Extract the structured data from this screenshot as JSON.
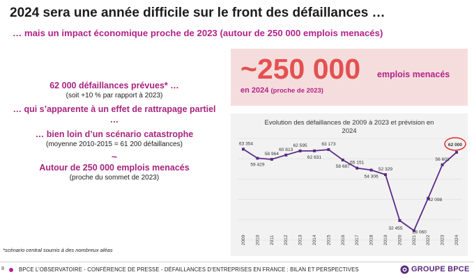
{
  "slide": {
    "title": "2024 sera une année difficile sur le front des défaillances …",
    "subtitle": "… mais un impact économique proche de 2023 (autour de 250 000 emplois menacés)"
  },
  "points": {
    "p1": "62 000 défaillances prévues* …",
    "p1_sub": "(soit +10 % par rapport à 2023)",
    "p2": "… qui s’apparente à un effet de rattrapage partiel …",
    "p3": "… bien loin d’un scénario catastrophe",
    "p3_sub": "(moyenne 2010-2015 = 61 200 défaillances)",
    "tilde": "~",
    "p4": "Autour de 250 000 emplois menacés",
    "p4_sub": "(proche du sommet de 2023)"
  },
  "footnote": "*scénario central soumis à des nombreux aléas",
  "kpi": {
    "value": "~250 000",
    "unit": "emplois menacés",
    "year": "en 2024",
    "year_note": "(proche de 2023)"
  },
  "footer": {
    "page": "8",
    "text": "BPCE L’OBSERVATOIRE - CONFÉRENCE DE PRESSE -  DÉFAILLANCES D’ENTREPRISES EN FRANCE : BILAN ET PERSPECTIVES",
    "brand": "GROUPE BPCE"
  },
  "colors": {
    "accent": "#b3228a",
    "kpi_value": "#e45151",
    "kpi_bg": "#f6dddd",
    "line": "#5b2a86",
    "highlight": "#e02020"
  },
  "chart_data": {
    "type": "line",
    "title": "Evolution des défaillances de 2009 à 2023 et prévision en 2024",
    "x": [
      "2009",
      "2010",
      "2011",
      "2012",
      "2013",
      "2014",
      "2015",
      "2016",
      "2017",
      "2018",
      "2019",
      "2020",
      "2021",
      "2022",
      "2023",
      "2024"
    ],
    "values": [
      63354,
      59429,
      58964,
      60813,
      62595,
      62631,
      63173,
      58687,
      55151,
      54306,
      52329,
      32455,
      28060,
      42098,
      56601,
      62000
    ],
    "labels": [
      "63 354",
      "59 429",
      "58 964",
      "60 813",
      "62 595",
      "62 631",
      "63 173",
      "58 687",
      "55 151",
      "54 306",
      "52 329",
      "32 455",
      "28 060",
      "42 098",
      "56 601",
      "62 000"
    ],
    "highlight_index": 15,
    "grid": true,
    "ylim": [
      24000,
      68000
    ]
  }
}
